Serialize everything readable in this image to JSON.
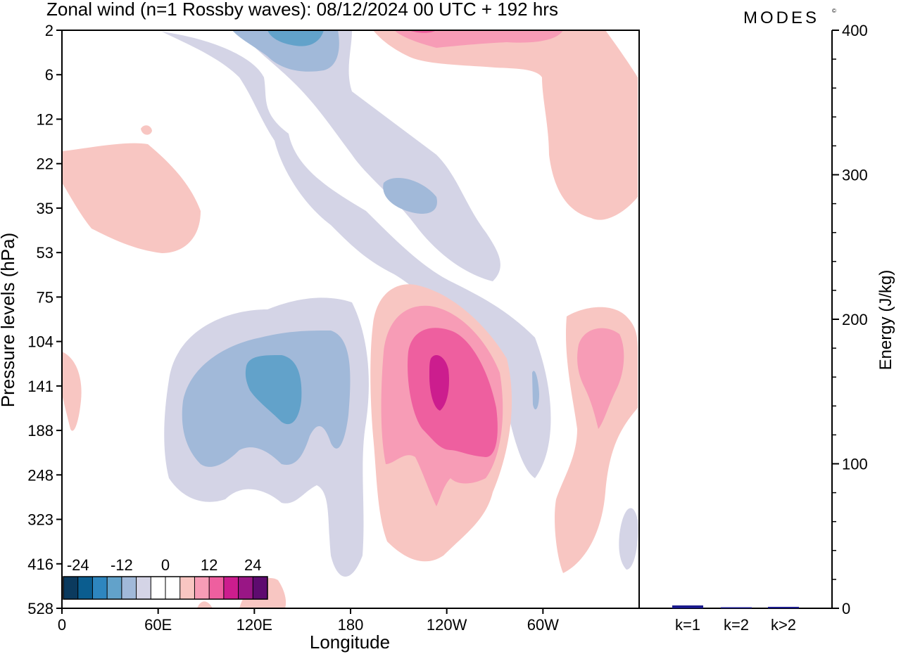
{
  "title": "Zonal wind (n=1 Rossby waves):  08/12/2024  00 UTC  + 192 hrs",
  "brand": "MODES",
  "brand_mark": "©",
  "chart_data": [
    {
      "type": "heatmap",
      "title": "Zonal wind (n=1 Rossby waves):  08/12/2024  00 UTC  + 192 hrs",
      "xlabel": "Longitude",
      "ylabel": "Pressure levels (hPa)",
      "x_ticks": [
        "0",
        "60E",
        "120E",
        "180",
        "120W",
        "60W"
      ],
      "x_tick_degrees_east": [
        0,
        60,
        120,
        180,
        240,
        300
      ],
      "x_range_degrees_east": [
        0,
        360
      ],
      "y_ticks": [
        "2",
        "6",
        "12",
        "22",
        "35",
        "53",
        "75",
        "104",
        "141",
        "188",
        "248",
        "323",
        "416",
        "528"
      ],
      "y_order": "top-to-bottom",
      "colorbar": {
        "labels": [
          "-24",
          "-12",
          "0",
          "12",
          "24"
        ],
        "colors": [
          "#0b3a5e",
          "#0b5d8f",
          "#2e86bf",
          "#62a2ca",
          "#a1b9d9",
          "#d4d4e6",
          "#ffffff",
          "#ffffff",
          "#f8c6c2",
          "#f79cb6",
          "#ee5f9f",
          "#cc1d8e",
          "#991685",
          "#5e0b6f"
        ]
      },
      "palette": {
        "neg1": "#d4d4e6",
        "neg2": "#a1b9d9",
        "neg3": "#62a2ca",
        "pos1": "#f8c6c2",
        "pos2": "#f79cb6",
        "pos3": "#ee5f9f",
        "pos4": "#cc1d8e"
      }
    },
    {
      "type": "bar",
      "ylabel": "Energy (J/kg)",
      "categories": [
        "k=1",
        "k=2",
        "k>2"
      ],
      "values": [
        2,
        0.5,
        1
      ],
      "ylim": [
        0,
        400
      ],
      "y_ticks": [
        "0",
        "100",
        "200",
        "300",
        "400"
      ],
      "bar_color": "#1a1a8c"
    }
  ]
}
